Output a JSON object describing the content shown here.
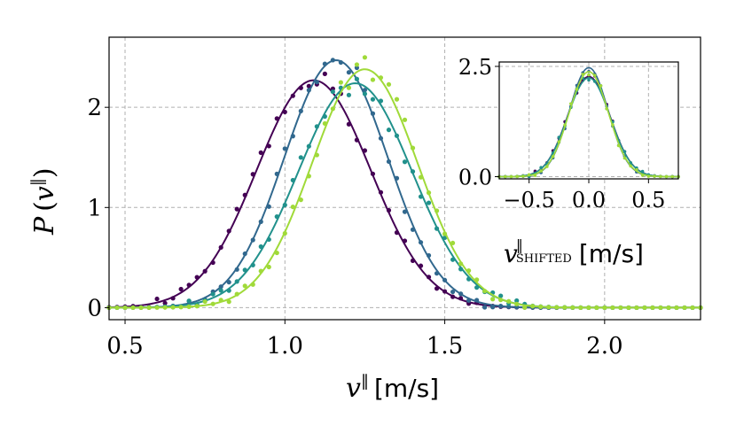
{
  "chart_data": [
    {
      "type": "line",
      "xlabel": "v‖ [m/s]",
      "ylabel": "P (v‖)",
      "xlim": [
        0.45,
        2.3
      ],
      "ylim": [
        -0.12,
        2.7
      ],
      "xticks": [
        "0.5",
        "1.0",
        "1.5",
        "2.0"
      ],
      "xtick_values": [
        0.5,
        1.0,
        1.5,
        2.0
      ],
      "yticks": [
        "0",
        "1",
        "2"
      ],
      "ytick_values": [
        0,
        1,
        2
      ],
      "grid": true,
      "series": [
        {
          "color": "#440154",
          "mean": 1.09,
          "sigma": 0.178,
          "peak": 2.27
        },
        {
          "color": "#31688e",
          "mean": 1.16,
          "sigma": 0.162,
          "peak": 2.47
        },
        {
          "color": "#21918c",
          "mean": 1.22,
          "sigma": 0.178,
          "peak": 2.24
        },
        {
          "color": "#a0da39",
          "mean": 1.25,
          "sigma": 0.165,
          "peak": 2.38
        }
      ]
    },
    {
      "type": "line",
      "inset": true,
      "xlabel": "v‖ SHIFTED [m/s]",
      "xlabel_main": "v",
      "xlabel_sup": "‖",
      "xlabel_sub": "SHIFTED",
      "xlabel_unit": "[m/s]",
      "xlim": [
        -0.75,
        0.75
      ],
      "ylim": [
        -0.05,
        2.6
      ],
      "xticks": [
        "−0.5",
        "0.0",
        "0.5"
      ],
      "xtick_values": [
        -0.5,
        0.0,
        0.5
      ],
      "yticks": [
        "0.0",
        "2.5"
      ],
      "ytick_values": [
        0.0,
        2.5
      ],
      "grid": true,
      "series": [
        {
          "color": "#440154",
          "mean": 0.0,
          "sigma": 0.178,
          "peak": 2.27
        },
        {
          "color": "#31688e",
          "mean": 0.0,
          "sigma": 0.162,
          "peak": 2.47
        },
        {
          "color": "#21918c",
          "mean": 0.0,
          "sigma": 0.178,
          "peak": 2.24
        },
        {
          "color": "#a0da39",
          "mean": 0.0,
          "sigma": 0.165,
          "peak": 2.38
        }
      ]
    }
  ]
}
